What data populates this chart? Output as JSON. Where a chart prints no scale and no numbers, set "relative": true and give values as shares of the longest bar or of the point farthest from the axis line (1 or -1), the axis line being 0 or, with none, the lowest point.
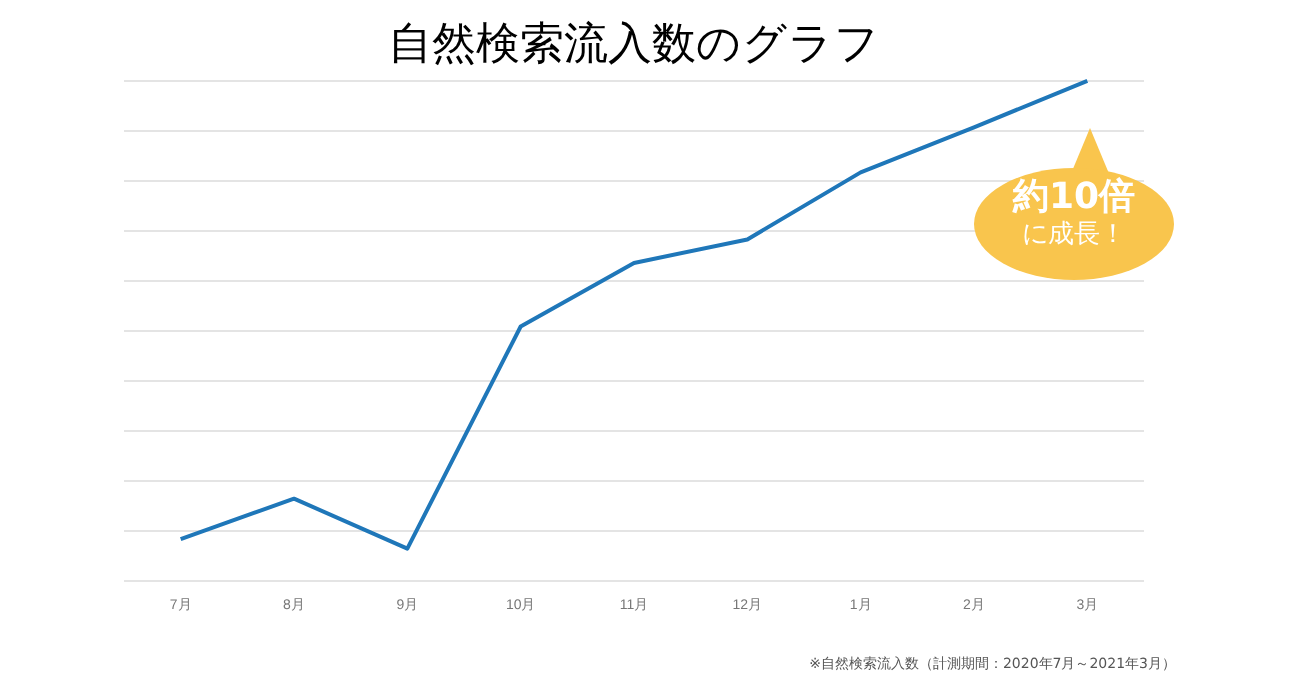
{
  "chart_data": {
    "type": "line",
    "title": "自然検索流入数のグラフ",
    "categories": [
      "7月",
      "8月",
      "9月",
      "10月",
      "11月",
      "12月",
      "1月",
      "2月",
      "3月"
    ],
    "series": [
      {
        "color": "#1f77b9",
        "values": [
          0.084,
          0.165,
          0.065,
          0.509,
          0.636,
          0.683,
          0.817,
          0.907,
          1
        ]
      }
    ],
    "relative": true,
    "grid": "y",
    "legend": false,
    "marker": "none",
    "line_style": "solid",
    "annotations": [
      "約10倍",
      "に成長！",
      "※自然検索流入数（計測期間：2020年7月～2021年3月）"
    ]
  }
}
